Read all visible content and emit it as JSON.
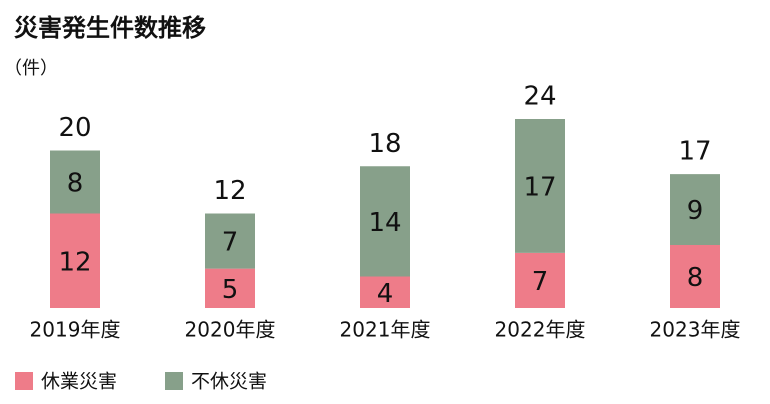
{
  "chart_data": {
    "type": "stacked_bar",
    "title": "災害発生件数推移",
    "unit_label": "（件）",
    "categories": [
      "2019年度",
      "2020年度",
      "2021年度",
      "2022年度",
      "2023年度"
    ],
    "series": [
      {
        "name": "休業災害",
        "color": "#ee7c89",
        "values": [
          12,
          5,
          4,
          7,
          8
        ]
      },
      {
        "name": "不休災害",
        "color": "#87a08a",
        "values": [
          8,
          7,
          14,
          17,
          9
        ]
      }
    ],
    "totals": [
      20,
      12,
      18,
      24,
      17
    ]
  }
}
